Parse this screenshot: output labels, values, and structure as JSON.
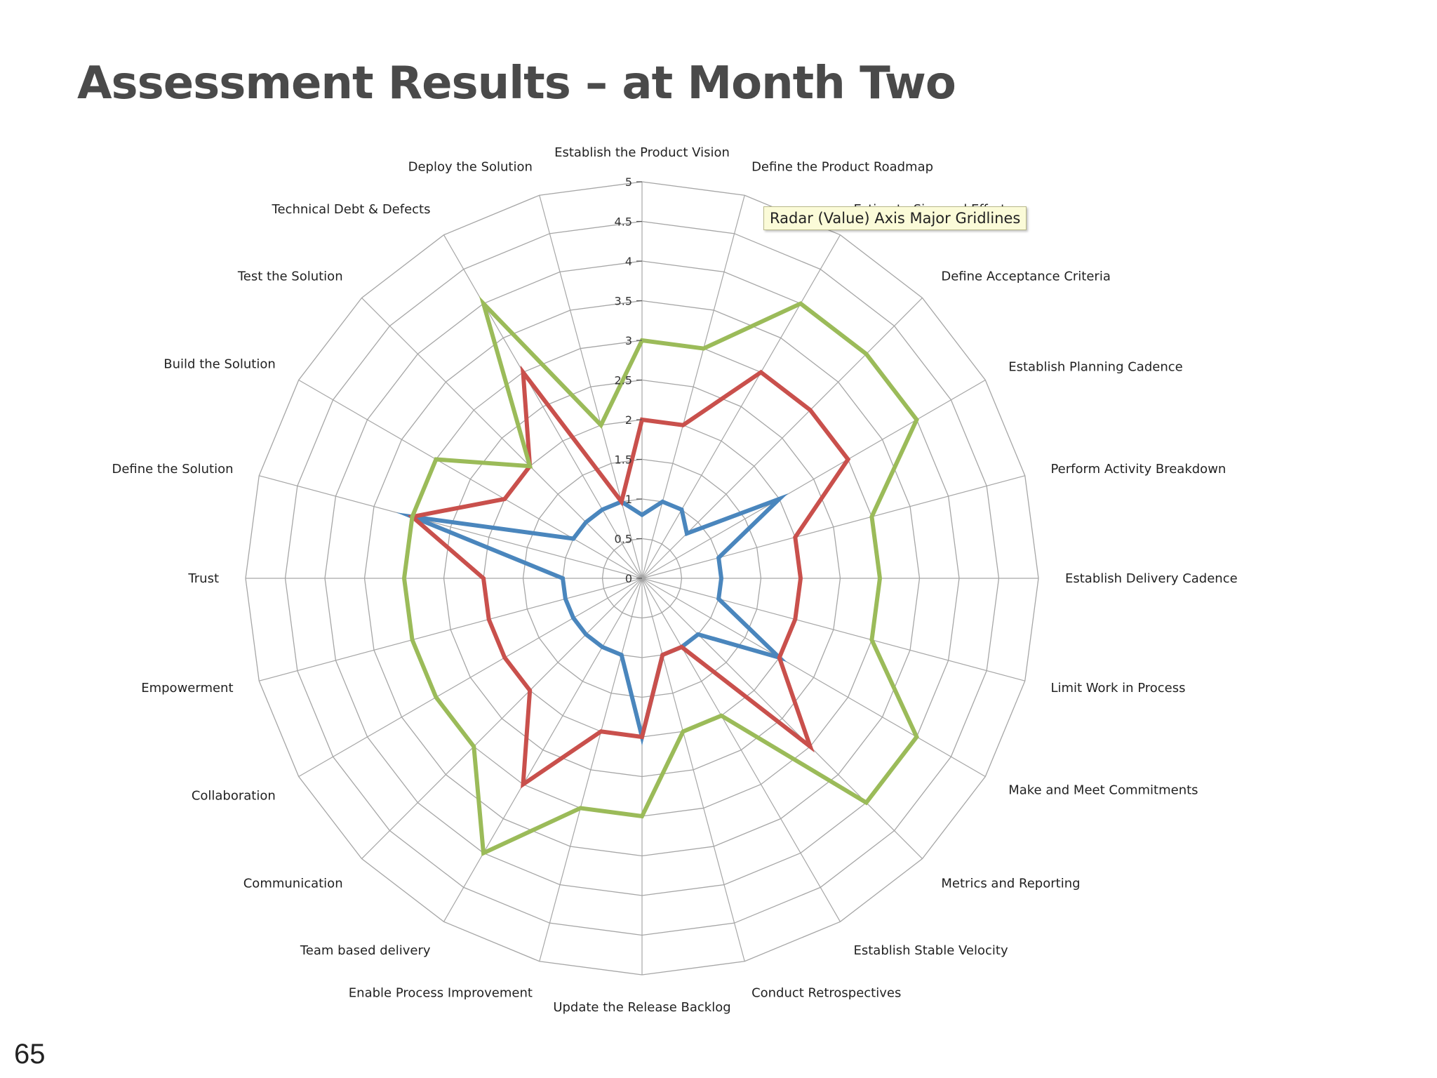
{
  "slide": {
    "title": "Assessment Results – at Month Two",
    "page_number": "65"
  },
  "tooltip": {
    "text": "Radar (Value) Axis Major Gridlines"
  },
  "chart_data": {
    "type": "radar",
    "axes": [
      "Establish the Product Vision",
      "Define the Product Roadmap",
      "Estimate Size and Effort",
      "Define Acceptance Criteria",
      "Establish Planning Cadence",
      "Perform Activity Breakdown",
      "Establish Delivery Cadence",
      "Limit Work in Process",
      "Make and Meet Commitments",
      "Metrics and Reporting",
      "Establish Stable Velocity",
      "Conduct Retrospectives",
      "Update the Release Backlog",
      "Enable Process Improvement",
      "Team based delivery",
      "Communication",
      "Collaboration",
      "Empowerment",
      "Trust",
      "Define the Solution",
      "Build the Solution",
      "Test the Solution",
      "Technical Debt & Defects",
      "Deploy the Solution"
    ],
    "ticks": [
      "0",
      "0.5",
      "1",
      "1.5",
      "2",
      "2.5",
      "3",
      "3.5",
      "4",
      "4.5",
      "5"
    ],
    "rmin": 0,
    "rmax": 5,
    "grid": true,
    "series": [
      {
        "color": "#4a86bd",
        "values": [
          0.8,
          1.0,
          1.0,
          0.8,
          2.0,
          1.0,
          1.0,
          1.0,
          2.0,
          1.0,
          1.0,
          1.0,
          2.0,
          1.0,
          1.0,
          1.0,
          1.0,
          1.0,
          1.0,
          3.0,
          1.0,
          1.0,
          1.0,
          1.0
        ]
      },
      {
        "color": "#c9504c",
        "values": [
          2.0,
          2.0,
          3.0,
          3.0,
          3.0,
          2.0,
          2.0,
          2.0,
          2.0,
          3.0,
          1.0,
          1.0,
          2.0,
          2.0,
          3.0,
          2.0,
          2.0,
          2.0,
          2.0,
          3.0,
          2.0,
          2.0,
          3.0,
          1.0
        ]
      },
      {
        "color": "#9bbb59",
        "values": [
          3.0,
          3.0,
          4.0,
          4.0,
          4.0,
          3.0,
          3.0,
          3.0,
          4.0,
          4.0,
          2.0,
          2.0,
          3.0,
          3.0,
          4.0,
          3.0,
          3.0,
          3.0,
          3.0,
          3.0,
          3.0,
          2.0,
          4.0,
          2.0
        ]
      }
    ]
  }
}
